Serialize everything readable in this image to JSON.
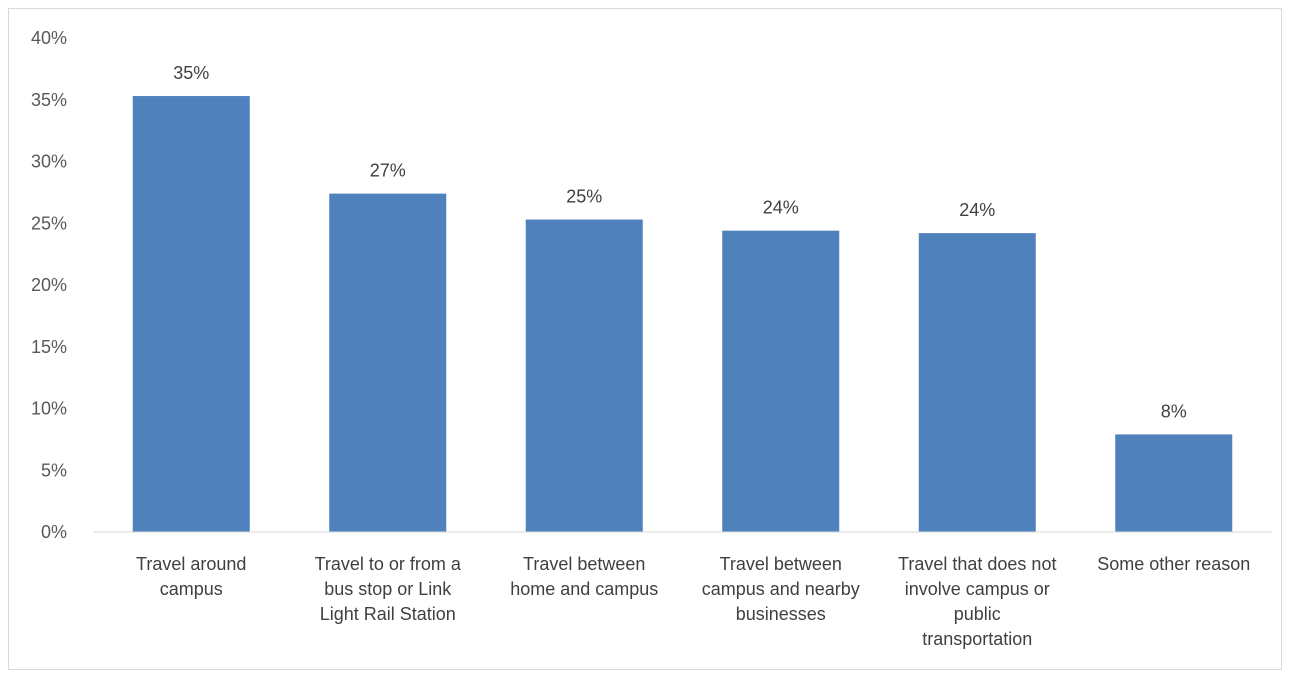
{
  "chart_data": {
    "type": "bar",
    "categories": [
      [
        "Travel around",
        "campus"
      ],
      [
        "Travel to or from a",
        "bus stop or Link",
        "Light Rail Station"
      ],
      [
        "Travel between",
        "home and campus"
      ],
      [
        "Travel between",
        "campus and nearby",
        "businesses"
      ],
      [
        "Travel that does not",
        "involve campus or",
        "public",
        "transportation"
      ],
      [
        "Some other reason"
      ]
    ],
    "values": [
      35.3,
      27.4,
      25.3,
      24.4,
      24.2,
      7.9
    ],
    "data_labels": [
      "35%",
      "27%",
      "25%",
      "24%",
      "24%",
      "8%"
    ],
    "ylim": [
      0,
      40
    ],
    "yticks": [
      "0%",
      "5%",
      "10%",
      "15%",
      "20%",
      "25%",
      "30%",
      "35%",
      "40%"
    ],
    "title": "",
    "xlabel": "",
    "ylabel": "",
    "grid": false,
    "legend": "none",
    "bar_color": "#4f81bd",
    "axis_color": "#d9d9d9"
  }
}
